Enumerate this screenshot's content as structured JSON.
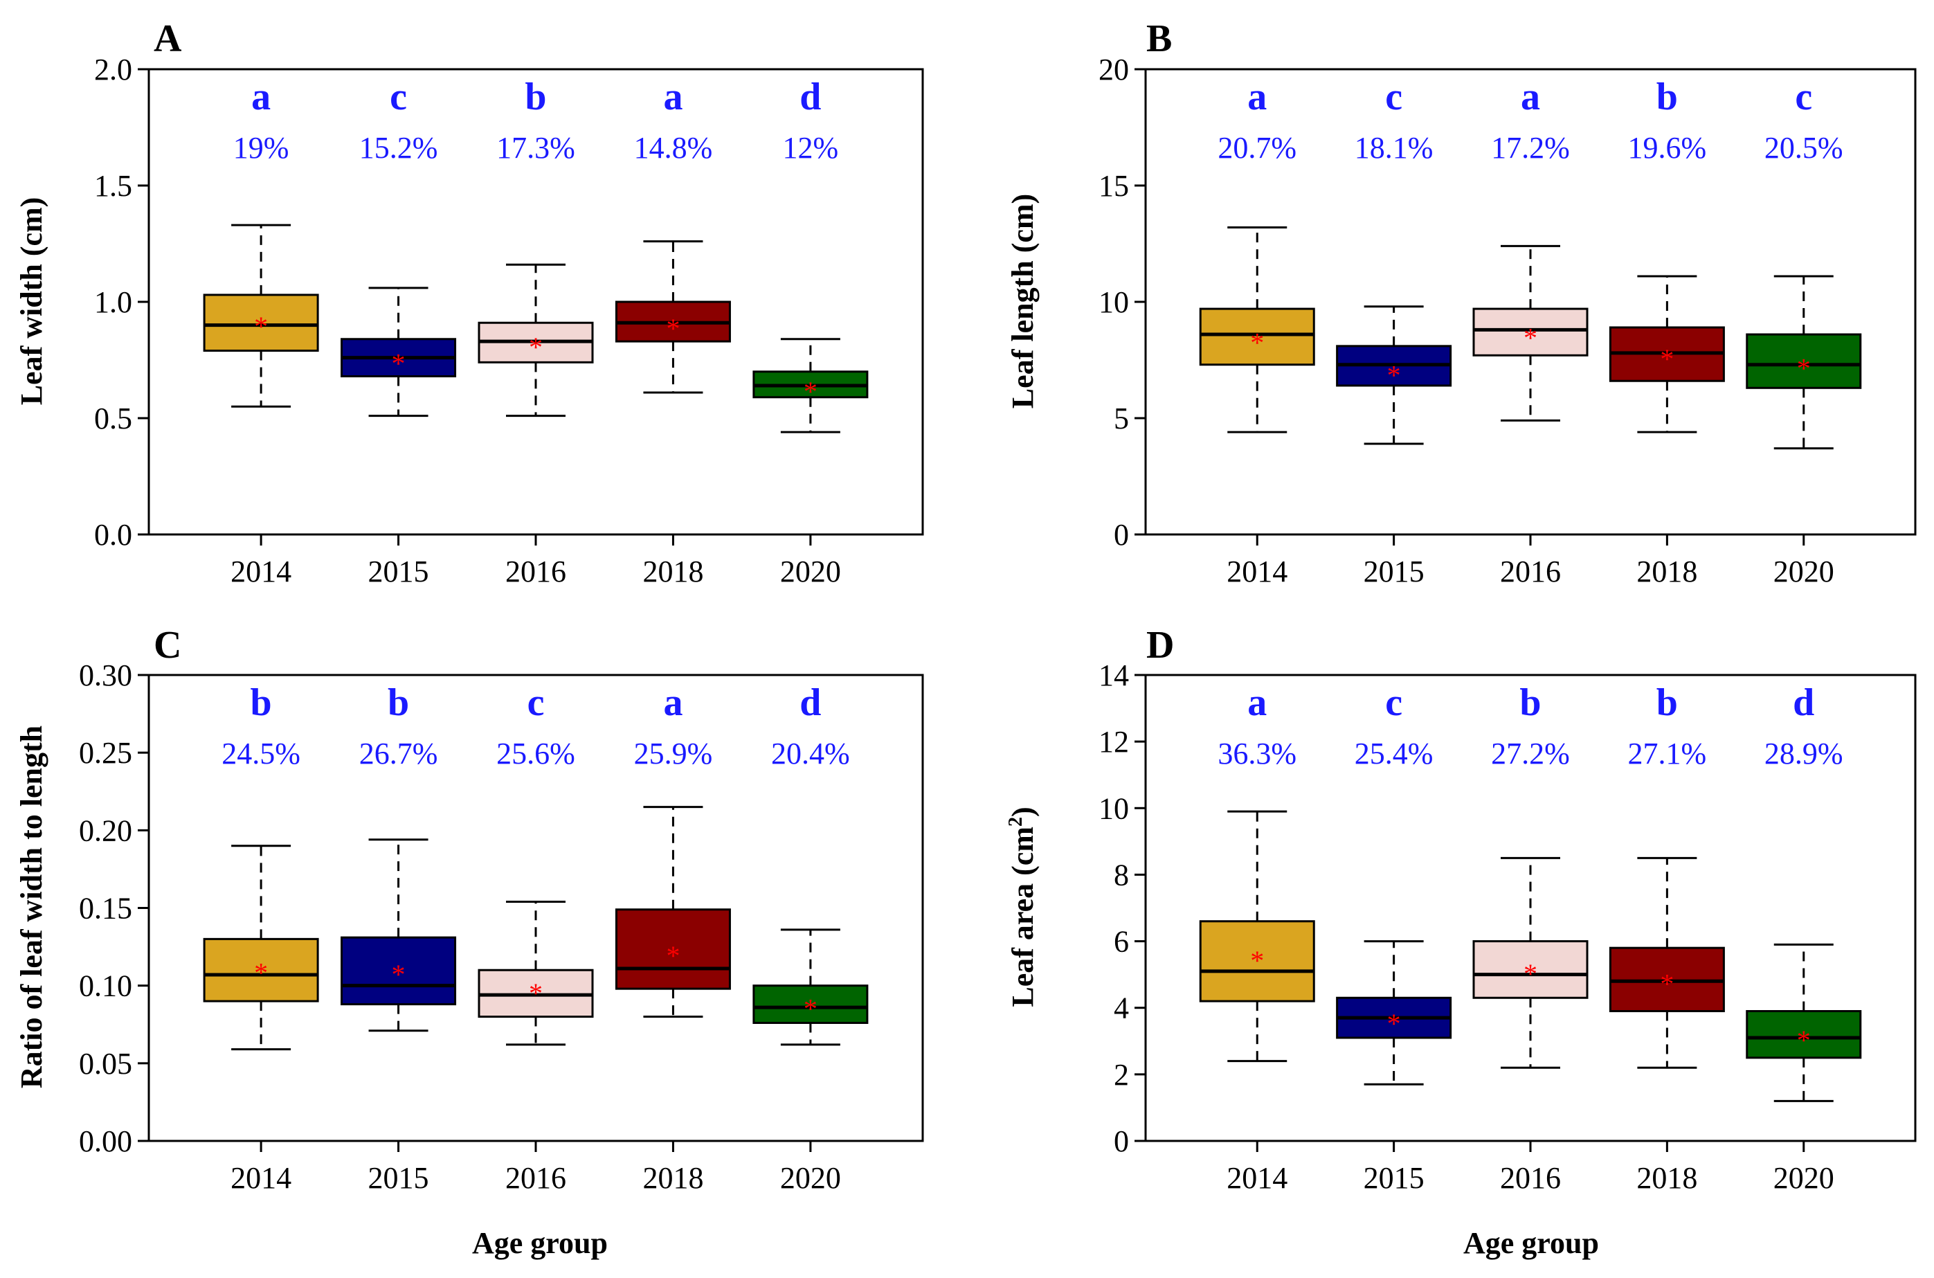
{
  "colors": {
    "box_fills": [
      "#DAA520",
      "#000080",
      "#F2D7D4",
      "#8B0000",
      "#006400"
    ],
    "annotation": "#1A1AFF",
    "mean_marker": "#FF0000"
  },
  "figure": {
    "x_axis_title": "Age group",
    "mean_marker_symbol": "*"
  },
  "chart_data": [
    {
      "panel": "A",
      "type": "boxplot",
      "ylabel": "Leaf width (cm)",
      "ylabel_sup": "",
      "ylabel_tail": "",
      "categories": [
        "2014",
        "2015",
        "2016",
        "2018",
        "2020"
      ],
      "ylim": [
        0,
        2.0
      ],
      "yticks": [
        0.0,
        0.5,
        1.0,
        1.5,
        2.0
      ],
      "ytick_labels": [
        "0.0",
        "0.5",
        "1.0",
        "1.5",
        "2.0"
      ],
      "boxes": [
        {
          "whisker_low": 0.55,
          "q1": 0.79,
          "median": 0.9,
          "q3": 1.03,
          "whisker_high": 1.33,
          "mean": 0.92
        },
        {
          "whisker_low": 0.51,
          "q1": 0.68,
          "median": 0.76,
          "q3": 0.84,
          "whisker_high": 1.06,
          "mean": 0.76
        },
        {
          "whisker_low": 0.51,
          "q1": 0.74,
          "median": 0.83,
          "q3": 0.91,
          "whisker_high": 1.16,
          "mean": 0.83
        },
        {
          "whisker_low": 0.61,
          "q1": 0.83,
          "median": 0.91,
          "q3": 1.0,
          "whisker_high": 1.26,
          "mean": 0.91
        },
        {
          "whisker_low": 0.44,
          "q1": 0.59,
          "median": 0.64,
          "q3": 0.7,
          "whisker_high": 0.84,
          "mean": 0.64
        }
      ],
      "letters": [
        "a",
        "c",
        "b",
        "a",
        "d"
      ],
      "cv": [
        "19%",
        "15.2%",
        "17.3%",
        "14.8%",
        "12%"
      ]
    },
    {
      "panel": "B",
      "type": "boxplot",
      "ylabel": "Leaf length (cm)",
      "ylabel_sup": "",
      "ylabel_tail": "",
      "categories": [
        "2014",
        "2015",
        "2016",
        "2018",
        "2020"
      ],
      "ylim": [
        0,
        20
      ],
      "yticks": [
        0,
        5,
        10,
        15,
        20
      ],
      "ytick_labels": [
        "0",
        "5",
        "10",
        "15",
        "20"
      ],
      "boxes": [
        {
          "whisker_low": 4.4,
          "q1": 7.3,
          "median": 8.6,
          "q3": 9.7,
          "whisker_high": 13.2,
          "mean": 8.5
        },
        {
          "whisker_low": 3.9,
          "q1": 6.4,
          "median": 7.3,
          "q3": 8.1,
          "whisker_high": 9.8,
          "mean": 7.1
        },
        {
          "whisker_low": 4.9,
          "q1": 7.7,
          "median": 8.8,
          "q3": 9.7,
          "whisker_high": 12.4,
          "mean": 8.7
        },
        {
          "whisker_low": 4.4,
          "q1": 6.6,
          "median": 7.8,
          "q3": 8.9,
          "whisker_high": 11.1,
          "mean": 7.8
        },
        {
          "whisker_low": 3.7,
          "q1": 6.3,
          "median": 7.3,
          "q3": 8.6,
          "whisker_high": 11.1,
          "mean": 7.4
        }
      ],
      "letters": [
        "a",
        "c",
        "a",
        "b",
        "c"
      ],
      "cv": [
        "20.7%",
        "18.1%",
        "17.2%",
        "19.6%",
        "20.5%"
      ]
    },
    {
      "panel": "C",
      "type": "boxplot",
      "ylabel": "Ratio of leaf width to length",
      "ylabel_sup": "",
      "ylabel_tail": "",
      "categories": [
        "2014",
        "2015",
        "2016",
        "2018",
        "2020"
      ],
      "ylim": [
        0,
        0.3
      ],
      "yticks": [
        0.0,
        0.05,
        0.1,
        0.15,
        0.2,
        0.25,
        0.3
      ],
      "ytick_labels": [
        "0.00",
        "0.05",
        "0.10",
        "0.15",
        "0.20",
        "0.25",
        "0.30"
      ],
      "boxes": [
        {
          "whisker_low": 0.059,
          "q1": 0.09,
          "median": 0.107,
          "q3": 0.13,
          "whisker_high": 0.19,
          "mean": 0.112
        },
        {
          "whisker_low": 0.071,
          "q1": 0.088,
          "median": 0.1,
          "q3": 0.131,
          "whisker_high": 0.194,
          "mean": 0.111
        },
        {
          "whisker_low": 0.062,
          "q1": 0.08,
          "median": 0.094,
          "q3": 0.11,
          "whisker_high": 0.154,
          "mean": 0.099
        },
        {
          "whisker_low": 0.08,
          "q1": 0.098,
          "median": 0.111,
          "q3": 0.149,
          "whisker_high": 0.215,
          "mean": 0.123
        },
        {
          "whisker_low": 0.062,
          "q1": 0.076,
          "median": 0.086,
          "q3": 0.1,
          "whisker_high": 0.136,
          "mean": 0.089
        }
      ],
      "letters": [
        "b",
        "b",
        "c",
        "a",
        "d"
      ],
      "cv": [
        "24.5%",
        "26.7%",
        "25.6%",
        "25.9%",
        "20.4%"
      ]
    },
    {
      "panel": "D",
      "type": "boxplot",
      "ylabel": "Leaf area (cm",
      "ylabel_sup": "2",
      "ylabel_tail": ")",
      "categories": [
        "2014",
        "2015",
        "2016",
        "2018",
        "2020"
      ],
      "ylim": [
        0,
        14
      ],
      "yticks": [
        0,
        2,
        4,
        6,
        8,
        10,
        12,
        14
      ],
      "ytick_labels": [
        "0",
        "2",
        "4",
        "6",
        "8",
        "10",
        "12",
        "14"
      ],
      "boxes": [
        {
          "whisker_low": 2.4,
          "q1": 4.2,
          "median": 5.1,
          "q3": 6.6,
          "whisker_high": 9.9,
          "mean": 5.6
        },
        {
          "whisker_low": 1.7,
          "q1": 3.1,
          "median": 3.7,
          "q3": 4.3,
          "whisker_high": 6.0,
          "mean": 3.7
        },
        {
          "whisker_low": 2.2,
          "q1": 4.3,
          "median": 5.0,
          "q3": 6.0,
          "whisker_high": 8.5,
          "mean": 5.2
        },
        {
          "whisker_low": 2.2,
          "q1": 3.9,
          "median": 4.8,
          "q3": 5.8,
          "whisker_high": 8.5,
          "mean": 4.9
        },
        {
          "whisker_low": 1.2,
          "q1": 2.5,
          "median": 3.1,
          "q3": 3.9,
          "whisker_high": 5.9,
          "mean": 3.2
        }
      ],
      "letters": [
        "a",
        "c",
        "b",
        "b",
        "d"
      ],
      "cv": [
        "36.3%",
        "25.4%",
        "27.2%",
        "27.1%",
        "28.9%"
      ]
    }
  ]
}
